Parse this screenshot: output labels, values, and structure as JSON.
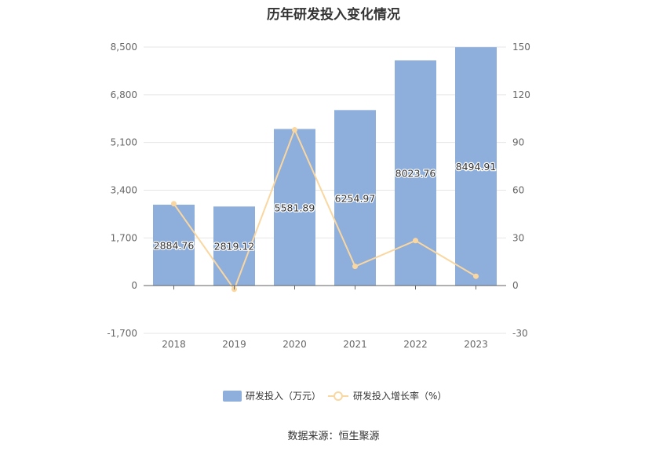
{
  "chart_data": {
    "type": "bar+line",
    "title": "历年研发投入变化情况",
    "categories": [
      "2018",
      "2019",
      "2020",
      "2021",
      "2022",
      "2023"
    ],
    "series": [
      {
        "name": "研发投入（万元）",
        "type": "bar",
        "axis": "left",
        "values": [
          2884.76,
          2819.12,
          5581.89,
          6254.97,
          8023.76,
          8494.91
        ],
        "labels": [
          "2884.76",
          "2819.12",
          "5581.89",
          "6254.97",
          "8023.76",
          "8494.91"
        ],
        "color": "#8eaedb"
      },
      {
        "name": "研发投入增长率（%）",
        "type": "line",
        "axis": "right",
        "values": [
          51.5,
          -2.3,
          98.0,
          12.1,
          28.3,
          5.9
        ],
        "color": "#fad7a0"
      }
    ],
    "y_left": {
      "min": -1700,
      "max": 8500,
      "ticks": [
        "-1,700",
        "0",
        "1,700",
        "3,400",
        "5,100",
        "6,800",
        "8,500"
      ]
    },
    "y_right": {
      "min": -30,
      "max": 150,
      "ticks": [
        "-30",
        "0",
        "30",
        "60",
        "90",
        "120",
        "150"
      ]
    },
    "grid": true,
    "legend_position": "bottom"
  },
  "footer": {
    "source": "数据来源：恒生聚源"
  }
}
